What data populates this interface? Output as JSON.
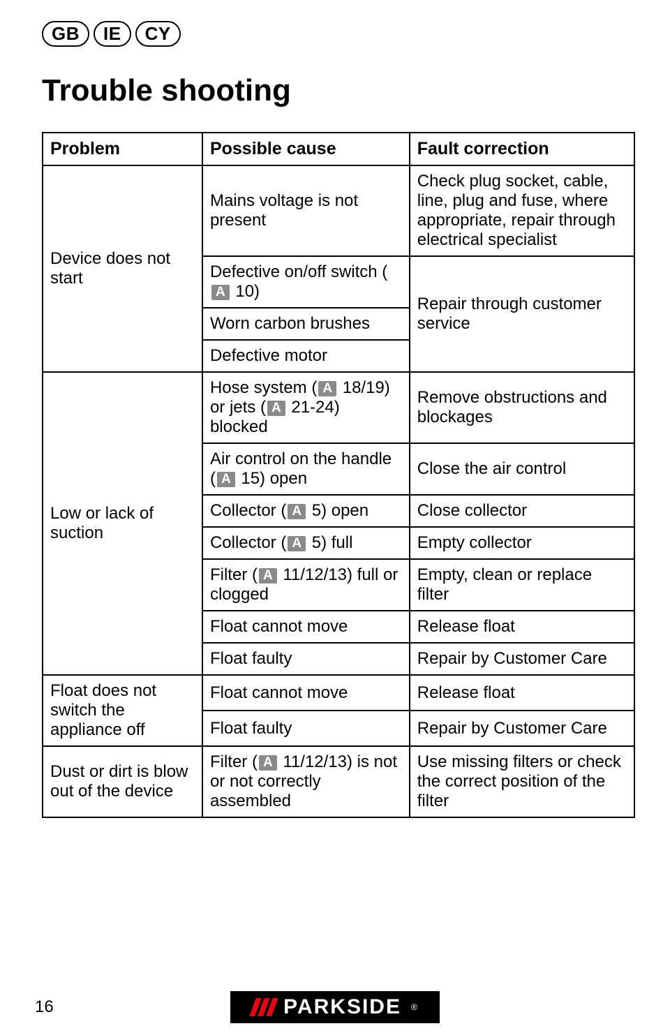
{
  "countries": [
    "GB",
    "IE",
    "CY"
  ],
  "heading": "Trouble shooting",
  "columns": [
    "Problem",
    "Possible cause",
    "Fault correction"
  ],
  "rows": {
    "p1": "Device does not start",
    "c1a": "Mains voltage is not present",
    "f1a": "Check plug socket, cable, line, plug and fuse, where appropriate, repair through electrical specialist",
    "c1b_pre": "Defective on/off switch (",
    "c1b_ref": "A",
    "c1b_post": " 10)",
    "c1c": "Worn carbon brushes",
    "f1b": "Repair through customer service",
    "c1d": "Defective motor",
    "p2": "Low or lack of suction",
    "c2a_pre": "Hose system (",
    "c2a_mid": " 18/19) or jets (",
    "c2a_post": " 21-24) blocked",
    "f2a": "Remove obstructions and blockages",
    "c2b_pre": "Air control on the handle (",
    "c2b_post": " 15) open",
    "f2b": "Close the air control",
    "c2c_pre": "Collector (",
    "c2c_post": " 5) open",
    "f2c": "Close collector",
    "c2d_pre": "Collector (",
    "c2d_post": " 5) full",
    "f2d": "Empty collector",
    "c2e_pre": "Filter (",
    "c2e_post": " 11/12/13) full or clogged",
    "f2e": "Empty, clean or replace filter",
    "c2f": "Float cannot move",
    "f2f": "Release float",
    "c2g": "Float faulty",
    "f2g": "Repair by Customer Care",
    "p3": "Float does not switch the appliance off",
    "c3a": "Float cannot move",
    "f3a": "Release float",
    "c3b": "Float faulty",
    "f3b": "Repair by Customer Care",
    "p4": "Dust or dirt is blow out of the device",
    "c4_pre": "Filter (",
    "c4_post": " 11/12/13) is not or not correctly assembled",
    "f4": "Use missing filters or check the correct position of the filter"
  },
  "ref_label": "A",
  "page_number": "16",
  "brand": "PARKSIDE"
}
